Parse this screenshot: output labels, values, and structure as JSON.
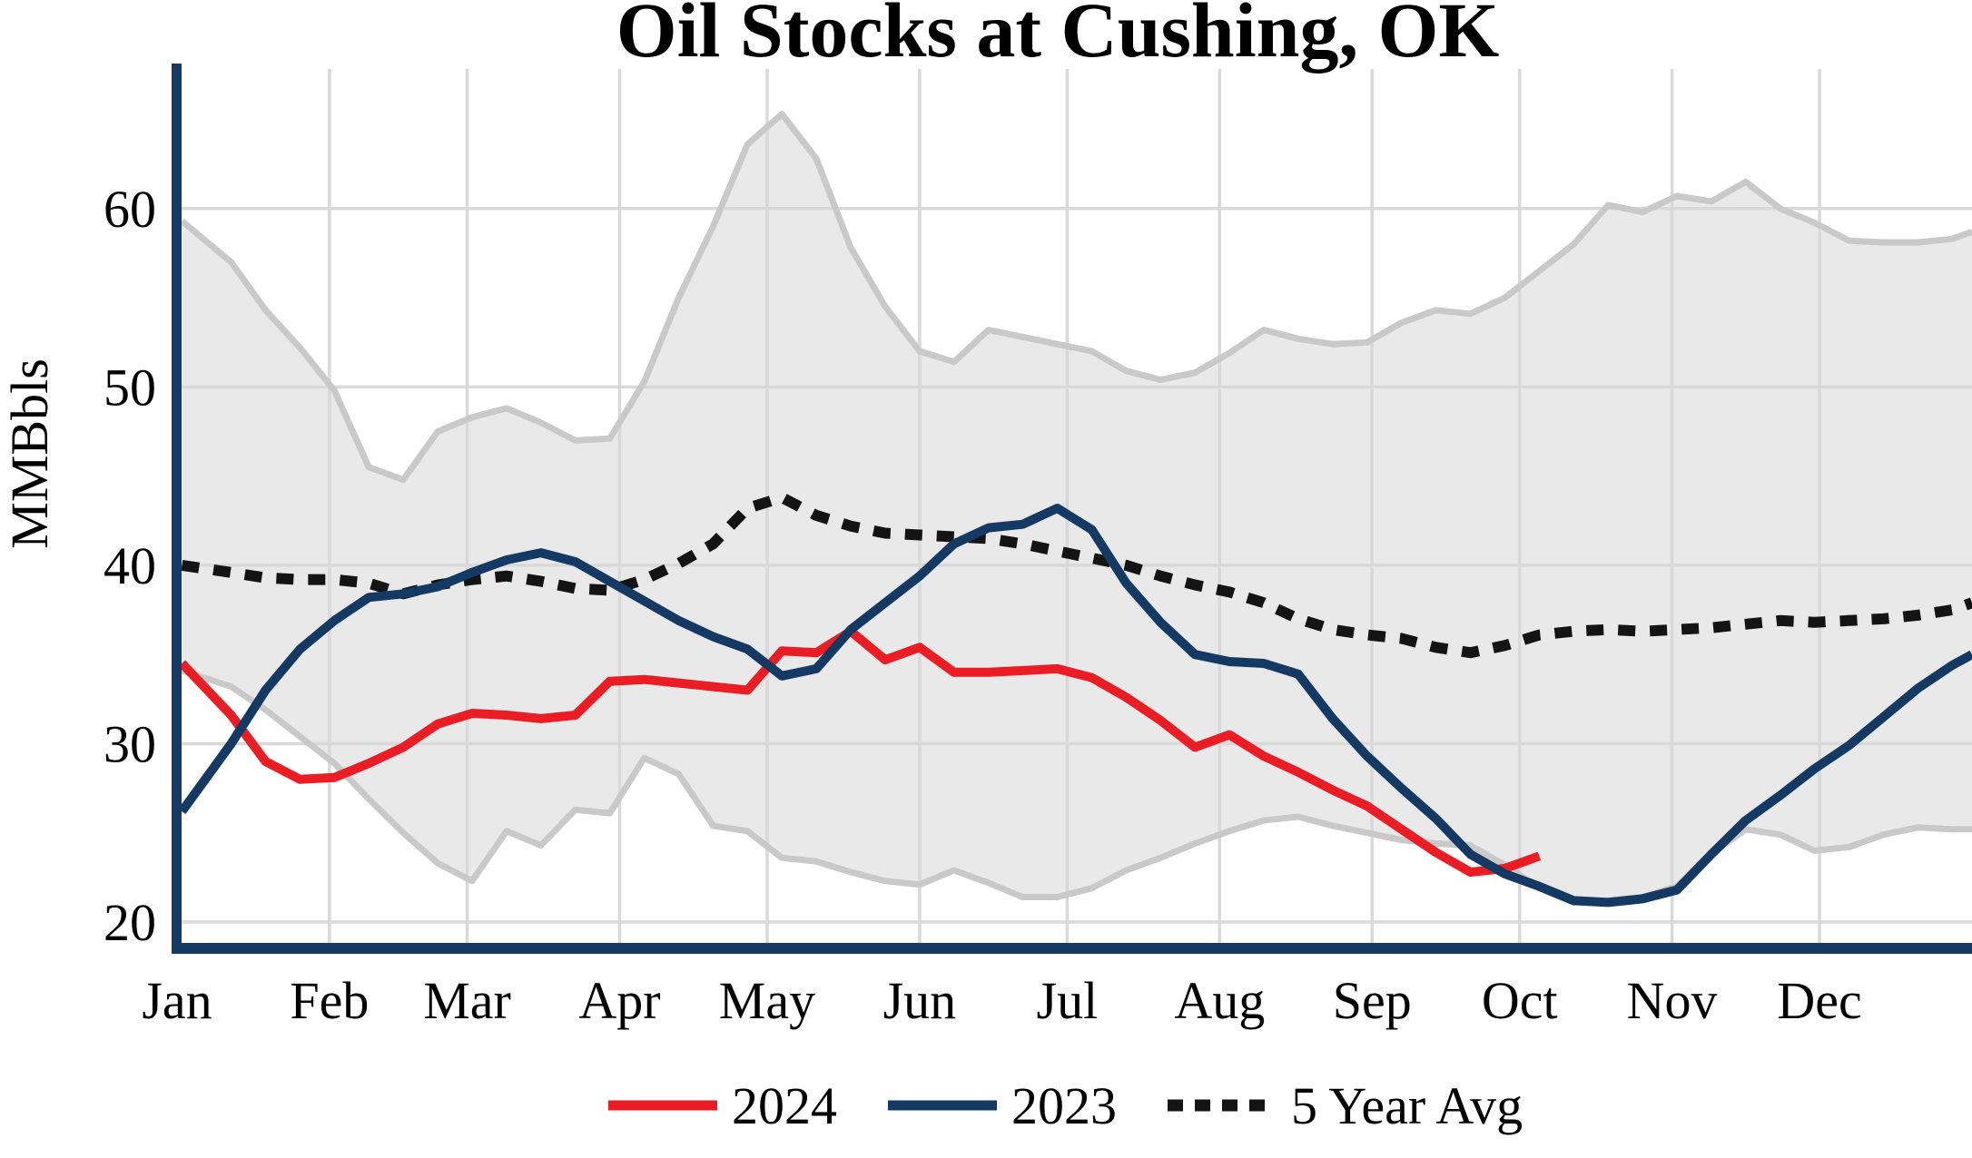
{
  "page_title": "Oil Stocks at Cushing, OK",
  "chart_data": {
    "type": "line",
    "title": "Oil Stocks at Cushing, OK",
    "xlabel": "",
    "ylabel": "MMBbls",
    "categories": [
      "Jan",
      "Feb",
      "Mar",
      "Apr",
      "May",
      "Jun",
      "Jul",
      "Aug",
      "Sep",
      "Oct",
      "Nov",
      "Dec"
    ],
    "month_start_days": [
      0,
      31,
      59,
      90,
      120,
      151,
      181,
      212,
      243,
      273,
      304,
      334
    ],
    "y_ticks": [
      20,
      30,
      40,
      50,
      60
    ],
    "ylim": [
      18,
      68
    ],
    "x_range_days": 365,
    "point_interval": "weekly",
    "grid": true,
    "legend_position": "bottom",
    "colors": {
      "background": "#ffffff",
      "axis": "#143a64",
      "grid": "#d9d9d9",
      "band_fill": "#e9e9e9",
      "band_edge": "#c9c9c9",
      "red_2024": "#ea1c24",
      "navy_2023": "#143a64",
      "avg_black": "#141414",
      "text": "#000000"
    },
    "band": {
      "name": "5-year range",
      "upper": [
        59.3,
        57.0,
        54.3,
        52.2,
        49.8,
        45.5,
        44.8,
        47.5,
        48.3,
        48.8,
        48.0,
        47.0,
        47.1,
        50.3,
        55.0,
        59.0,
        63.6,
        65.3,
        62.8,
        57.8,
        54.5,
        52.0,
        51.4,
        53.2,
        52.8,
        52.4,
        52.0,
        50.9,
        50.4,
        50.8,
        51.9,
        53.2,
        52.7,
        52.4,
        52.5,
        53.6,
        54.3,
        54.1,
        55.0,
        56.5,
        58.0,
        60.2,
        59.8,
        60.7,
        60.4,
        61.5,
        60.0,
        59.2,
        58.2,
        58.1,
        58.1,
        58.3,
        58.7
      ],
      "lower": [
        34.1,
        33.2,
        31.9,
        30.4,
        28.9,
        26.9,
        25.0,
        23.3,
        22.3,
        25.1,
        24.3,
        26.3,
        26.1,
        29.2,
        28.3,
        25.4,
        25.1,
        23.6,
        23.4,
        22.8,
        22.3,
        22.1,
        22.9,
        22.2,
        21.4,
        21.4,
        21.9,
        22.9,
        23.6,
        24.4,
        25.1,
        25.7,
        25.9,
        25.4,
        25.0,
        24.6,
        24.4,
        24.3,
        23.2,
        21.9,
        21.1,
        21.2,
        21.4,
        22.0,
        23.8,
        25.2,
        24.9,
        24.0,
        24.2,
        24.9,
        25.3,
        25.2,
        25.2
      ]
    },
    "series": [
      {
        "name": "2024",
        "style": "solid",
        "color": "#ea1c24",
        "values": [
          34.5,
          31.6,
          29.0,
          28.0,
          28.1,
          28.9,
          29.8,
          31.1,
          31.7,
          31.6,
          31.4,
          31.6,
          33.5,
          33.6,
          33.4,
          33.2,
          33.0,
          35.2,
          35.1,
          36.3,
          34.7,
          35.4,
          34.0,
          34.0,
          34.1,
          34.2,
          33.7,
          32.6,
          31.3,
          29.8,
          30.5,
          29.3,
          28.4,
          27.4,
          26.5,
          25.2,
          23.9,
          22.8,
          23.0,
          23.7
        ]
      },
      {
        "name": "2023",
        "style": "solid",
        "color": "#143a64",
        "values": [
          26.2,
          30.0,
          33.0,
          35.3,
          36.9,
          38.2,
          38.4,
          38.8,
          39.6,
          40.3,
          40.7,
          40.2,
          39.1,
          38.0,
          36.9,
          36.0,
          35.3,
          33.8,
          34.2,
          36.4,
          37.9,
          39.4,
          41.2,
          42.1,
          42.3,
          43.2,
          42.0,
          39.0,
          36.8,
          35.0,
          34.6,
          34.5,
          33.9,
          31.4,
          29.3,
          27.5,
          25.8,
          23.8,
          22.7,
          22.0,
          21.2,
          21.1,
          21.3,
          21.8,
          23.8,
          25.7,
          27.1,
          28.6,
          29.9,
          31.5,
          33.1,
          34.4,
          35.0
        ]
      },
      {
        "name": "5 Year Avg",
        "style": "dotted",
        "color": "#141414",
        "values": [
          40.0,
          39.6,
          39.3,
          39.2,
          39.2,
          39.0,
          38.4,
          38.9,
          39.2,
          39.4,
          39.1,
          38.7,
          38.6,
          39.2,
          40.1,
          41.2,
          43.2,
          43.8,
          42.8,
          42.2,
          41.8,
          41.7,
          41.6,
          41.5,
          41.2,
          40.8,
          40.4,
          40.0,
          39.4,
          38.9,
          38.5,
          37.9,
          37.0,
          36.4,
          36.1,
          35.9,
          35.4,
          35.1,
          35.5,
          36.1,
          36.3,
          36.4,
          36.3,
          36.4,
          36.5,
          36.7,
          36.9,
          36.8,
          36.9,
          37.0,
          37.2,
          37.5,
          37.9
        ]
      }
    ]
  }
}
